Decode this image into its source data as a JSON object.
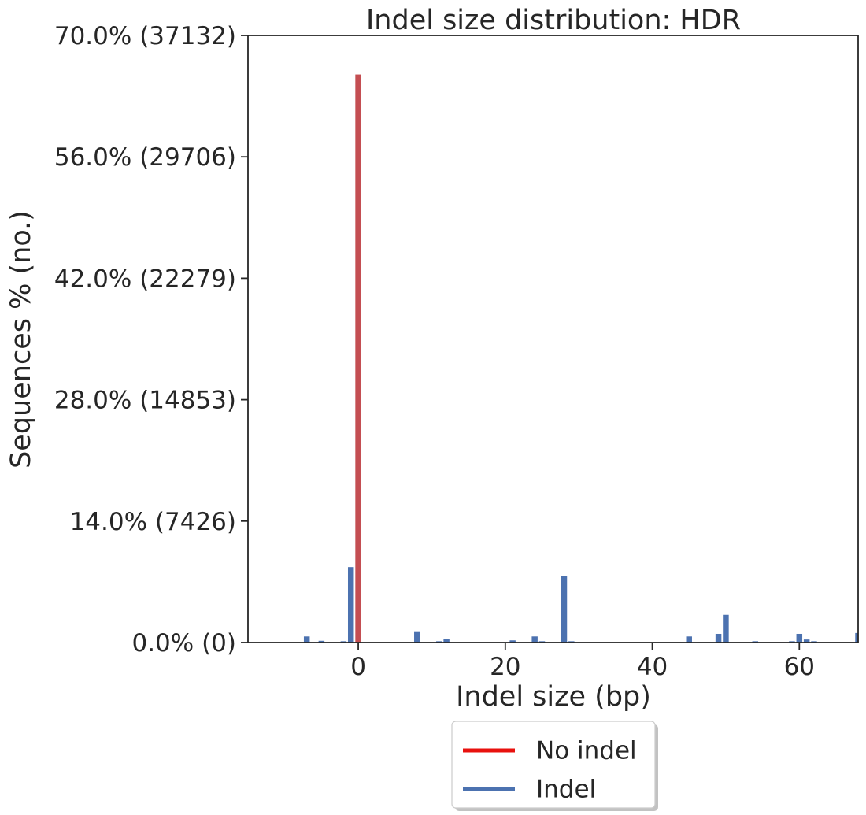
{
  "chart_data": {
    "type": "bar",
    "title": "Indel size distribution: HDR",
    "xlabel": "Indel size (bp)",
    "ylabel": "Sequences % (no.)",
    "xlim": [
      -15,
      68
    ],
    "ylim": [
      0,
      70
    ],
    "x_ticks": [
      0,
      20,
      40,
      60
    ],
    "y_ticks": [
      {
        "value": 0,
        "label": "0.0% (0)"
      },
      {
        "value": 14,
        "label": "14.0% (7426)"
      },
      {
        "value": 28,
        "label": "28.0% (14853)"
      },
      {
        "value": 42,
        "label": "42.0% (22279)"
      },
      {
        "value": 56,
        "label": "56.0% (29706)"
      },
      {
        "value": 70,
        "label": "70.0% (37132)"
      }
    ],
    "series": [
      {
        "name": "No indel",
        "color": "#c44e52",
        "line_color": "#e8110e",
        "points": [
          {
            "x": 0,
            "y": 65.5
          }
        ]
      },
      {
        "name": "Indel",
        "color": "#4c72b0",
        "line_color": "#4c72b0",
        "points": [
          {
            "x": -7,
            "y": 0.7
          },
          {
            "x": -5,
            "y": 0.2
          },
          {
            "x": -2,
            "y": 0.15
          },
          {
            "x": -1,
            "y": 8.7
          },
          {
            "x": 8,
            "y": 1.3
          },
          {
            "x": 11,
            "y": 0.15
          },
          {
            "x": 12,
            "y": 0.4
          },
          {
            "x": 21,
            "y": 0.25
          },
          {
            "x": 24,
            "y": 0.7
          },
          {
            "x": 25,
            "y": 0.15
          },
          {
            "x": 28,
            "y": 7.7
          },
          {
            "x": 29,
            "y": 0.15
          },
          {
            "x": 45,
            "y": 0.7
          },
          {
            "x": 49,
            "y": 1.0
          },
          {
            "x": 50,
            "y": 3.2
          },
          {
            "x": 54,
            "y": 0.15
          },
          {
            "x": 59,
            "y": 0.15
          },
          {
            "x": 60,
            "y": 1.0
          },
          {
            "x": 61,
            "y": 0.35
          },
          {
            "x": 62,
            "y": 0.15
          },
          {
            "x": 68,
            "y": 1.1
          }
        ]
      }
    ],
    "legend": {
      "placement": "bottom-center",
      "entries": [
        "No indel",
        "Indel"
      ]
    },
    "grid": false
  }
}
